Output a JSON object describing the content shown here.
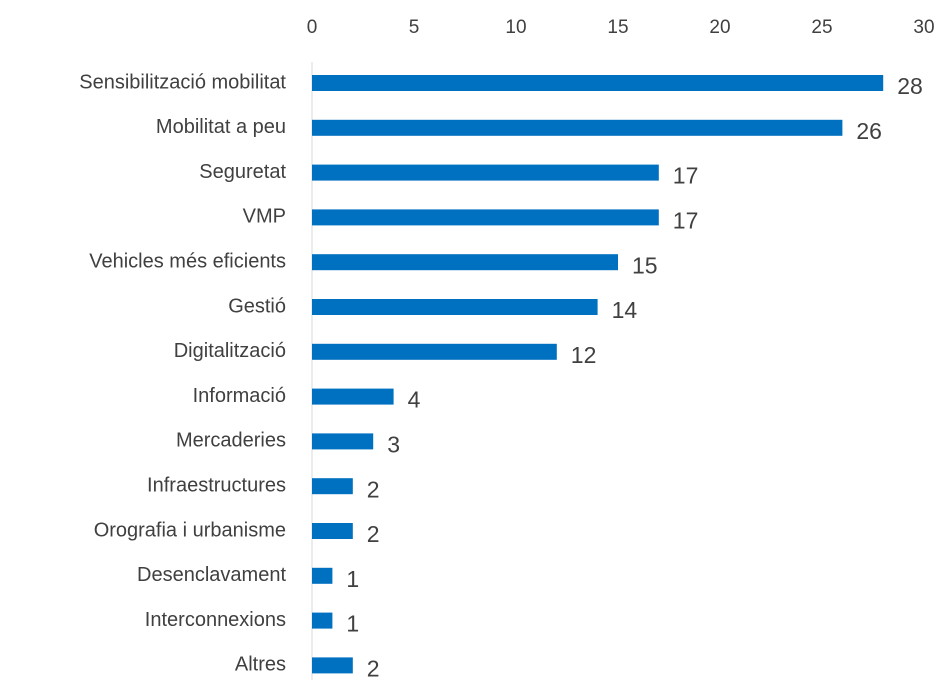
{
  "chart_data": {
    "type": "bar",
    "orientation": "horizontal",
    "categories": [
      "Sensibilització mobilitat",
      "Mobilitat a peu",
      "Seguretat",
      "VMP",
      "Vehicles més eficients",
      "Gestió",
      "Digitalització",
      "Informació",
      "Mercaderies",
      "Infraestructures",
      "Orografia i urbanisme",
      "Desenclavament",
      "Interconnexions",
      "Altres"
    ],
    "values": [
      28,
      26,
      17,
      17,
      15,
      14,
      12,
      4,
      3,
      2,
      2,
      1,
      1,
      2
    ],
    "color": "#0070c0",
    "xlim": [
      0,
      30
    ],
    "xticks": [
      0,
      5,
      10,
      15,
      20,
      25,
      30
    ],
    "grid": false
  }
}
